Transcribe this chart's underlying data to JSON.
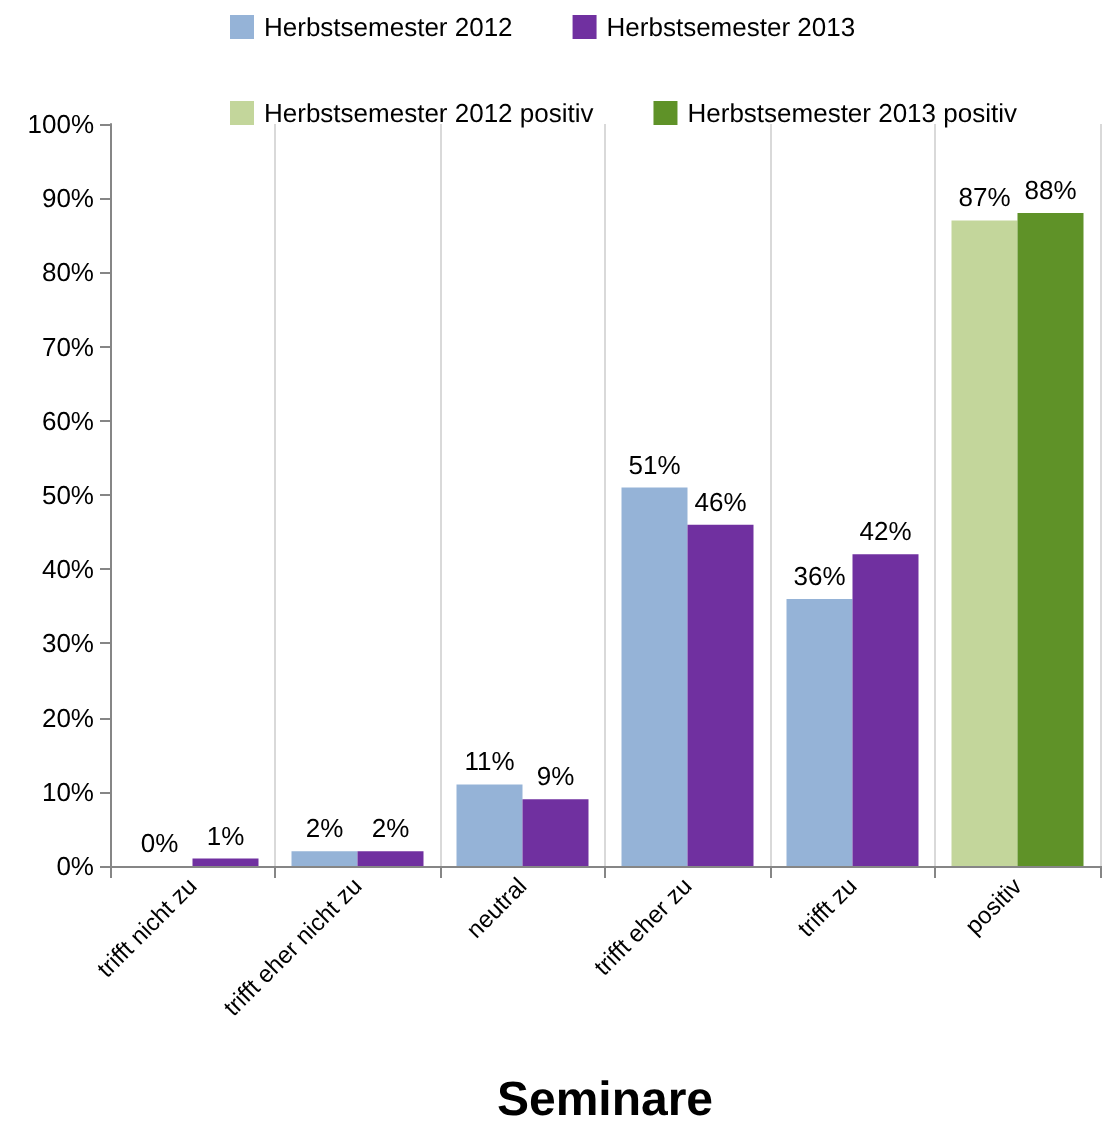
{
  "chart_data": {
    "type": "bar",
    "xlabel": "Seminare",
    "categories": [
      "trifft nicht zu",
      "trifft eher nicht zu",
      "neutral",
      "trifft eher zu",
      "trifft zu",
      "positiv"
    ],
    "series": [
      {
        "name": "Herbstsemester 2012",
        "color": "#95b3d7",
        "values": [
          0,
          2,
          11,
          51,
          36,
          null
        ],
        "value_labels": [
          "0%",
          "2%",
          "11%",
          "51%",
          "36%",
          null
        ]
      },
      {
        "name": "Herbstsemester 2013",
        "color": "#7030a0",
        "values": [
          1,
          2,
          9,
          46,
          42,
          null
        ],
        "value_labels": [
          "1%",
          "2%",
          "9%",
          "46%",
          "42%",
          null
        ]
      },
      {
        "name": "Herbstsemester 2012 positiv",
        "color": "#c3d69b",
        "values": [
          null,
          null,
          null,
          null,
          null,
          87
        ],
        "value_labels": [
          null,
          null,
          null,
          null,
          null,
          "87%"
        ]
      },
      {
        "name": "Herbstsemester 2013 positiv",
        "color": "#5f9228",
        "values": [
          null,
          null,
          null,
          null,
          null,
          88
        ],
        "value_labels": [
          null,
          null,
          null,
          null,
          null,
          "88%"
        ]
      }
    ],
    "ylim": [
      0,
      100
    ],
    "yticks": [
      {
        "value": 0,
        "label": "0%"
      },
      {
        "value": 10,
        "label": "10%"
      },
      {
        "value": 20,
        "label": "20%"
      },
      {
        "value": 30,
        "label": "30%"
      },
      {
        "value": 40,
        "label": "40%"
      },
      {
        "value": 50,
        "label": "50%"
      },
      {
        "value": 60,
        "label": "60%"
      },
      {
        "value": 70,
        "label": "70%"
      },
      {
        "value": 80,
        "label": "80%"
      },
      {
        "value": 90,
        "label": "90%"
      },
      {
        "value": 100,
        "label": "100%"
      }
    ],
    "grid": false,
    "legend": "top"
  }
}
